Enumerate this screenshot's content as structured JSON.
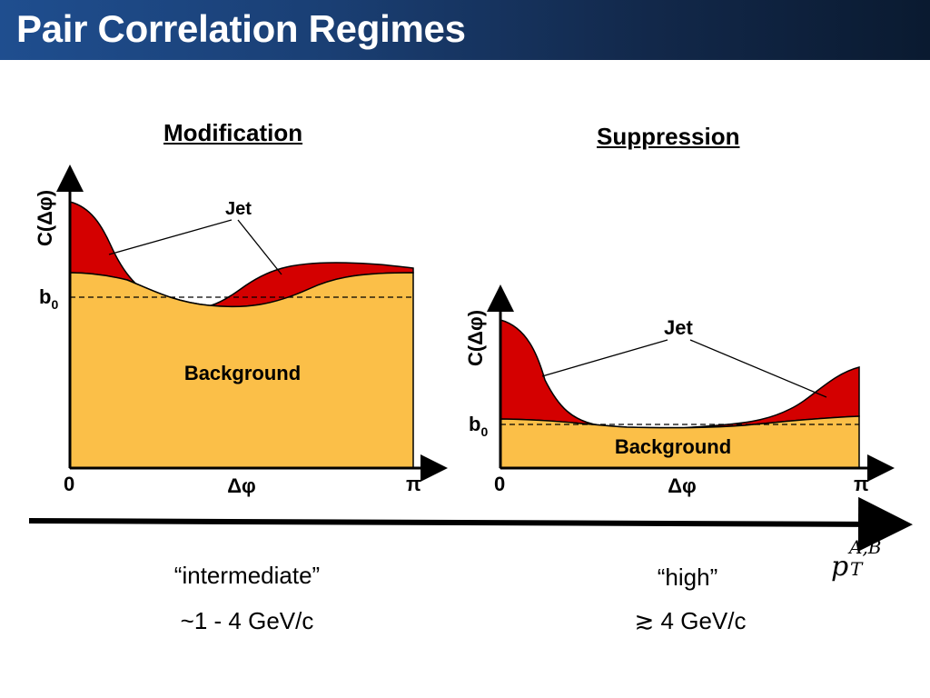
{
  "slide": {
    "title": "Pair Correlation Regimes"
  },
  "modification": {
    "heading": "Modification",
    "ylabel": "C(Δφ)",
    "baseline_label": "b",
    "baseline_sub": "0",
    "x_start": "0",
    "x_end": "π",
    "xlabel": "Δφ",
    "jet_label": "Jet",
    "background_label": "Background",
    "regime_name": "“intermediate”",
    "regime_range": "~1 - 4 GeV/c"
  },
  "suppression": {
    "heading": "Suppression",
    "ylabel": "C(Δφ)",
    "baseline_label": "b",
    "baseline_sub": "0",
    "x_start": "0",
    "x_end": "π",
    "xlabel": "Δφ",
    "jet_label": "Jet",
    "background_label": "Background",
    "regime_name": "“high”",
    "regime_range": "≳ 4 GeV/c"
  },
  "pt_axis": {
    "symbol": "p",
    "superscript": "A,B",
    "subscript": "T"
  },
  "colors": {
    "jet": "#d40000",
    "background": "#fbbf48",
    "title_bar": "#1a3f74"
  }
}
